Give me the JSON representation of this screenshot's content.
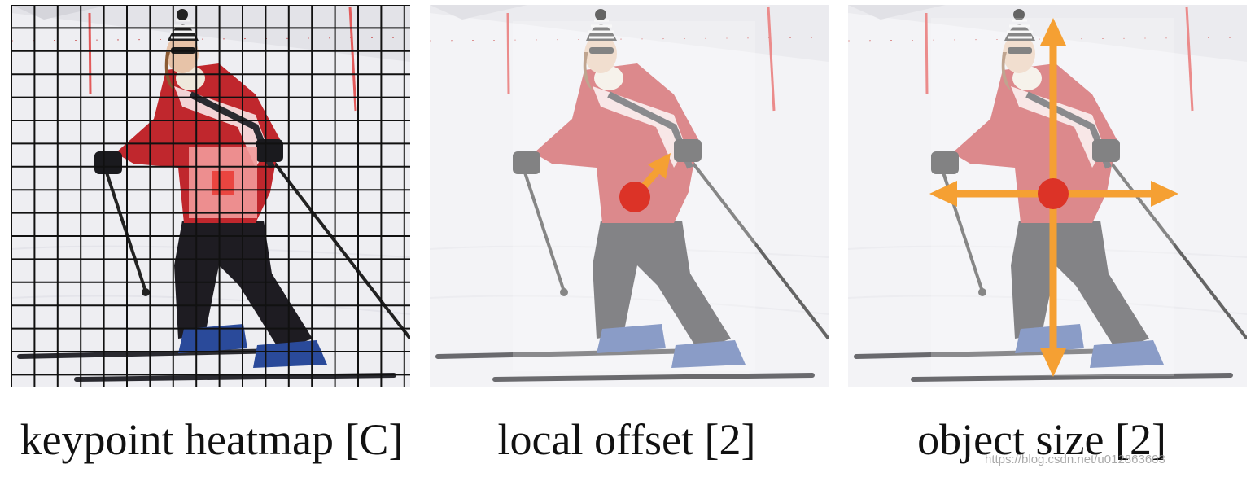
{
  "panels": [
    {
      "caption": "keypoint heatmap [C]"
    },
    {
      "caption": "local offset [2]"
    },
    {
      "caption": "object size [2]"
    }
  ],
  "watermark": "https://blog.csdn.net/u012863603",
  "colors": {
    "center_point": "#dc3327",
    "arrow": "#f5a033",
    "heat_cell_strong": "#ea4540",
    "heat_cell_light": "#f29a9a",
    "jacket": "#c0272d",
    "pants": "#1e1c22",
    "snow": "#eeeef2",
    "grid_line": "#111111"
  }
}
